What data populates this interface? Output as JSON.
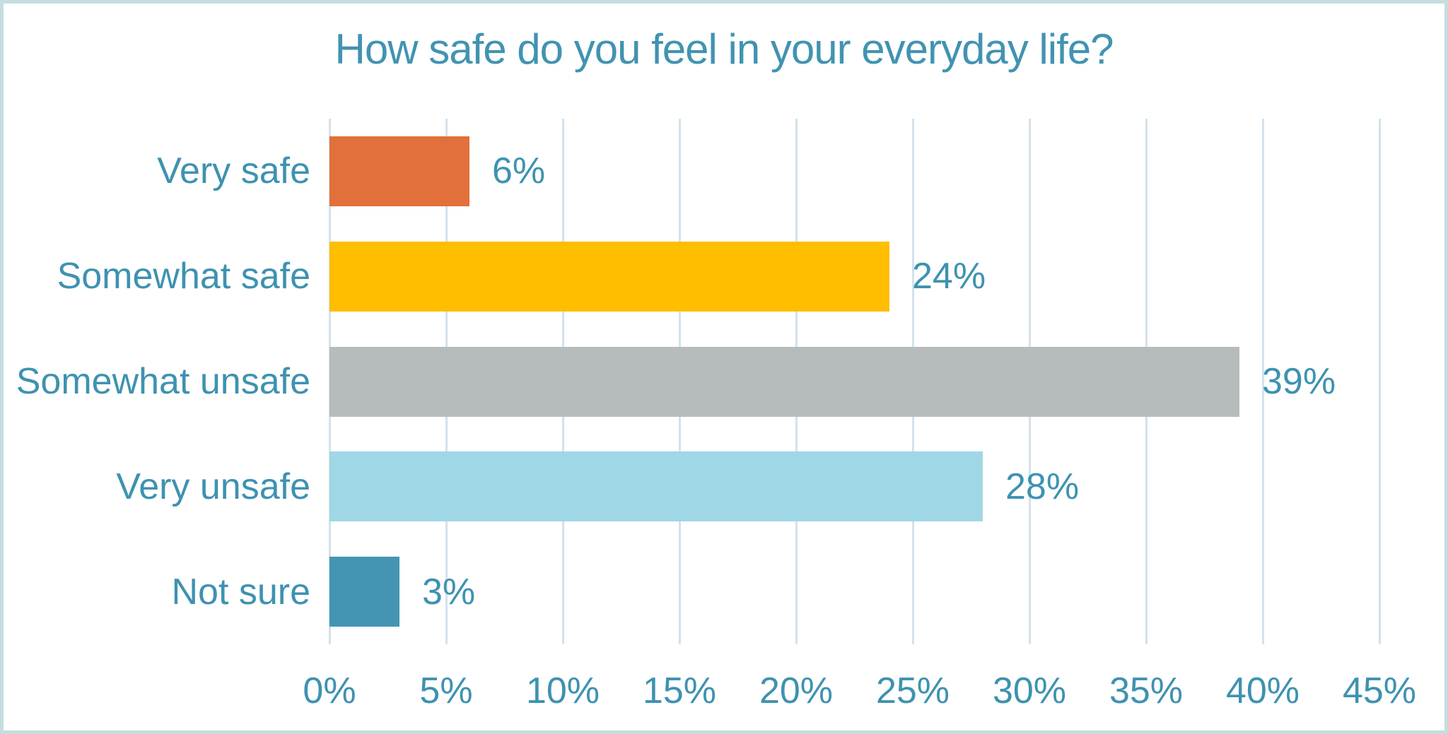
{
  "chart_data": {
    "type": "bar",
    "orientation": "horizontal",
    "title": "How safe do you feel in your everyday life?",
    "categories": [
      "Very safe",
      "Somewhat safe",
      "Somewhat unsafe",
      "Very unsafe",
      "Not sure"
    ],
    "values": [
      6,
      24,
      39,
      28,
      3
    ],
    "data_labels": [
      "6%",
      "24%",
      "39%",
      "28%",
      "3%"
    ],
    "bar_colors": [
      "#e1703a",
      "#ffbe00",
      "#b6bcbb",
      "#a0d7e6",
      "#4495b3"
    ],
    "xlabel": "",
    "ylabel": "",
    "xlim": [
      0,
      45
    ],
    "x_tick_step": 5,
    "x_tick_labels": [
      "0%",
      "5%",
      "10%",
      "15%",
      "20%",
      "25%",
      "30%",
      "35%",
      "40%",
      "45%"
    ],
    "grid": "vertical-gridlines-on",
    "legend": "none",
    "colors": {
      "text": "#3e92b0",
      "title_text": "#4193b1",
      "gridline": "#d3e2ec",
      "frame_border": "#c6dde0",
      "background": "#ffffff"
    }
  }
}
